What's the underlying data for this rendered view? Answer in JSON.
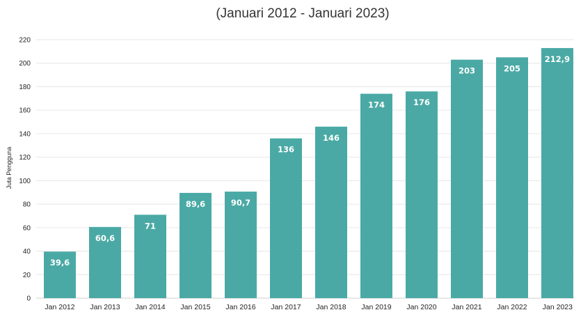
{
  "chart_data": {
    "type": "bar",
    "title": "(Januari 2012 - Januari 2023)",
    "xlabel": "",
    "ylabel": "Juta Pengguna",
    "ylim": [
      0,
      220
    ],
    "yticks": [
      0,
      20,
      40,
      60,
      80,
      100,
      120,
      140,
      160,
      180,
      200,
      220
    ],
    "categories": [
      "Jan 2012",
      "Jan 2013",
      "Jan 2014",
      "Jan 2015",
      "Jan 2016",
      "Jan 2017",
      "Jan 2018",
      "Jan 2019",
      "Jan 2020",
      "Jan 2021",
      "Jan 2022",
      "Jan 2023"
    ],
    "values": [
      39.6,
      60.6,
      71,
      89.6,
      90.7,
      136,
      146,
      174,
      176,
      203,
      205,
      212.9
    ],
    "data_labels": [
      "39,6",
      "60,6",
      "71",
      "89,6",
      "90,7",
      "136",
      "146",
      "174",
      "176",
      "203",
      "205",
      "212,9"
    ],
    "grid": true,
    "legend": "none",
    "colors": {
      "bar": "#4aa9a5",
      "grid": "#e6e6e6"
    }
  }
}
